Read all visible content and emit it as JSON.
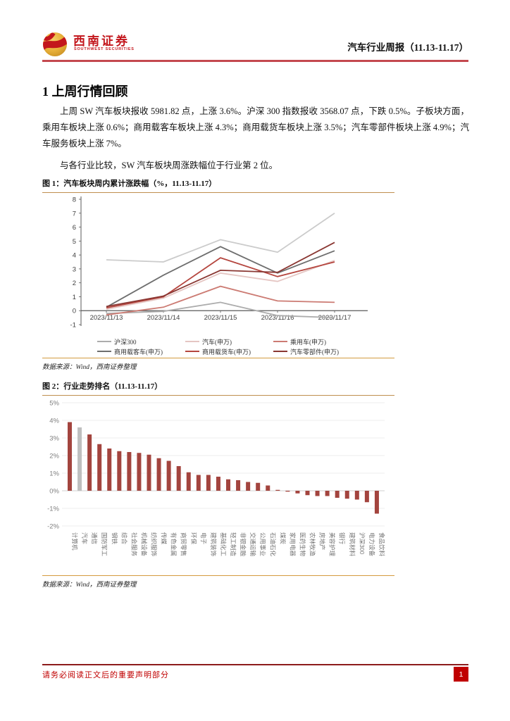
{
  "header": {
    "logo": {
      "brand_cn": "西南证券",
      "brand_en": "SOUTHWEST SECURITIES"
    },
    "report_title": "汽车行业周报（11.13-11.17）"
  },
  "section": {
    "heading": "1 上周行情回顾",
    "para1": "上周 SW 汽车板块报收 5981.82 点，上涨 3.6%。沪深 300 指数报收 3568.07 点，下跌 0.5%。子板块方面，乘用车板块上涨 0.6%；商用载客车板块上涨 4.3%；商用载货车板块上涨 3.5%；汽车零部件板块上涨 4.9%；汽车服务板块上涨 7%。",
    "para2": "与各行业比较，SW 汽车板块周涨跌幅位于行业第 2 位。"
  },
  "figure1": {
    "caption": "图 1：汽车板块周内累计涨跌幅（%，11.13-11.17）",
    "source": "数据来源：Wind，西南证券整理"
  },
  "figure2": {
    "caption": "图 2：行业走势排名（11.13-11.17）",
    "source": "数据来源：Wind，西南证券整理"
  },
  "footer": {
    "disclaimer": "请务必阅读正文后的重要声明部分",
    "page_number": "1"
  },
  "theme": {
    "header_rule": "#c4494f",
    "brand_red": "#c3161c",
    "caption_rule": "#bf8f4f",
    "source_rule": "#d49b3f",
    "footer_rule": "#8c1c1c",
    "footer_red": "#c00000"
  },
  "chart_data": [
    {
      "type": "line",
      "title": "汽车板块周内累计涨跌幅（%，11.13-11.17）",
      "x": [
        "2023/11/13",
        "2023/11/14",
        "2023/11/15",
        "2023/11/16",
        "2023/11/17"
      ],
      "ylim": [
        -1,
        8
      ],
      "yticks": [
        8,
        7,
        6,
        5,
        4,
        3,
        2,
        1,
        0,
        -1
      ],
      "grid": false,
      "legend_position": "bottom",
      "series": [
        {
          "name": "沪深300",
          "color": "#acacac",
          "in_legend": true,
          "values": [
            -0.2,
            -0.05,
            0.6,
            -0.35,
            -0.5
          ]
        },
        {
          "name": "汽车(申万)",
          "color": "#e5c6c3",
          "in_legend": true,
          "values": [
            0.1,
            0.9,
            2.7,
            2.1,
            3.6
          ]
        },
        {
          "name": "乘用车(申万)",
          "color": "#cc7b73",
          "in_legend": true,
          "values": [
            -0.3,
            0.25,
            1.75,
            0.7,
            0.6
          ]
        },
        {
          "name": "商用载客车(申万)",
          "color": "#6e6e6e",
          "in_legend": true,
          "values": [
            0.25,
            2.55,
            4.6,
            2.7,
            4.3
          ]
        },
        {
          "name": "商用载货车(申万)",
          "color": "#b5463f",
          "in_legend": true,
          "values": [
            0.2,
            1.0,
            3.8,
            2.45,
            3.5
          ]
        },
        {
          "name": "汽车零部件(申万)",
          "color": "#8a3732",
          "in_legend": true,
          "values": [
            0.3,
            1.05,
            2.9,
            2.75,
            4.9
          ]
        },
        {
          "name": "汽车服务(申万)",
          "color": "#cbcbcb",
          "in_legend": false,
          "values": [
            3.65,
            3.5,
            5.1,
            4.2,
            7.0
          ]
        }
      ]
    },
    {
      "type": "bar",
      "title": "行业走势排名（11.13-11.17）",
      "ylim": [
        -2,
        5
      ],
      "ytick_labels": [
        "5%",
        "4%",
        "3%",
        "2%",
        "1%",
        "0%",
        "-1%",
        "-2%"
      ],
      "grid": true,
      "bar_color": "#a3443e",
      "highlight_color": "#bfbfbf",
      "highlight_index": 1,
      "categories": [
        "计算机",
        "汽车",
        "通信",
        "国防军工",
        "钢铁",
        "综合",
        "社会服务",
        "机械设备",
        "纺织服饰",
        "传媒",
        "有色金属",
        "商贸零售",
        "环保",
        "电子",
        "建筑装饰",
        "基础化工",
        "轻工制造",
        "非银金融",
        "交通运输",
        "公用事业",
        "石油石化",
        "煤炭",
        "家用电器",
        "医药生物",
        "农林牧渔",
        "房地产",
        "美容护理",
        "银行",
        "建筑材料",
        "沪深300",
        "电力设备",
        "食品饮料"
      ],
      "values": [
        3.9,
        3.6,
        3.2,
        2.65,
        2.4,
        2.25,
        2.2,
        2.15,
        2.05,
        1.85,
        1.7,
        1.4,
        1.05,
        0.9,
        0.9,
        0.8,
        0.65,
        0.6,
        0.5,
        0.45,
        0.3,
        0.05,
        -0.05,
        -0.15,
        -0.25,
        -0.3,
        -0.3,
        -0.4,
        -0.45,
        -0.5,
        -0.65,
        -1.3
      ]
    }
  ]
}
